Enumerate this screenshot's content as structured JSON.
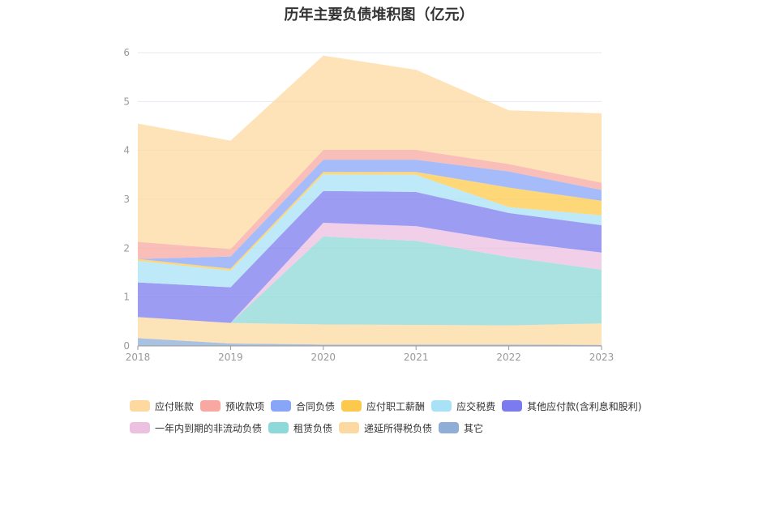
{
  "chart_data": {
    "type": "area",
    "stacked": true,
    "title": "历年主要负债堆积图（亿元）",
    "categories": [
      "2018",
      "2019",
      "2020",
      "2021",
      "2022",
      "2023"
    ],
    "ylim": [
      0,
      6
    ],
    "yticks": [
      0,
      1,
      2,
      3,
      4,
      5,
      6
    ],
    "grid": true,
    "legend_position": "bottom",
    "series": [
      {
        "name": "其它",
        "color": "#8eaed8",
        "values": [
          0.16,
          0.05,
          0.03,
          0.03,
          0.03,
          0.02
        ]
      },
      {
        "name": "递延所得税负债",
        "color": "#fcd9a0",
        "values": [
          0.43,
          0.42,
          0.41,
          0.4,
          0.39,
          0.44
        ]
      },
      {
        "name": "租赁负债",
        "color": "#8dd8d8",
        "values": [
          0,
          0,
          1.8,
          1.72,
          1.4,
          1.1
        ]
      },
      {
        "name": "一年内到期的非流动负债",
        "color": "#edbfe0",
        "values": [
          0,
          0,
          0.28,
          0.3,
          0.32,
          0.35
        ]
      },
      {
        "name": "其他应付款(含利息和股利)",
        "color": "#7b7bef",
        "values": [
          0.71,
          0.73,
          0.65,
          0.7,
          0.58,
          0.56
        ]
      },
      {
        "name": "应交税费",
        "color": "#a8e2f6",
        "values": [
          0.44,
          0.34,
          0.34,
          0.35,
          0.12,
          0.2
        ]
      },
      {
        "name": "应付职工薪酬",
        "color": "#fdc94c",
        "values": [
          0.04,
          0.04,
          0.05,
          0.06,
          0.4,
          0.3
        ]
      },
      {
        "name": "合同负债",
        "color": "#88a6f8",
        "values": [
          0,
          0.25,
          0.25,
          0.25,
          0.33,
          0.22
        ]
      },
      {
        "name": "预收款项",
        "color": "#f8a8a0",
        "values": [
          0.35,
          0.15,
          0.2,
          0.2,
          0.15,
          0.15
        ]
      },
      {
        "name": "应付账款",
        "color": "#fdd9a0",
        "values": [
          2.42,
          2.22,
          1.93,
          1.64,
          1.1,
          1.42
        ]
      }
    ],
    "legend_order": [
      "应付账款",
      "预收款项",
      "合同负债",
      "应付职工薪酬",
      "应交税费",
      "其他应付款(含利息和股利)",
      "一年内到期的非流动负债",
      "租赁负债",
      "递延所得税负债",
      "其它"
    ]
  }
}
